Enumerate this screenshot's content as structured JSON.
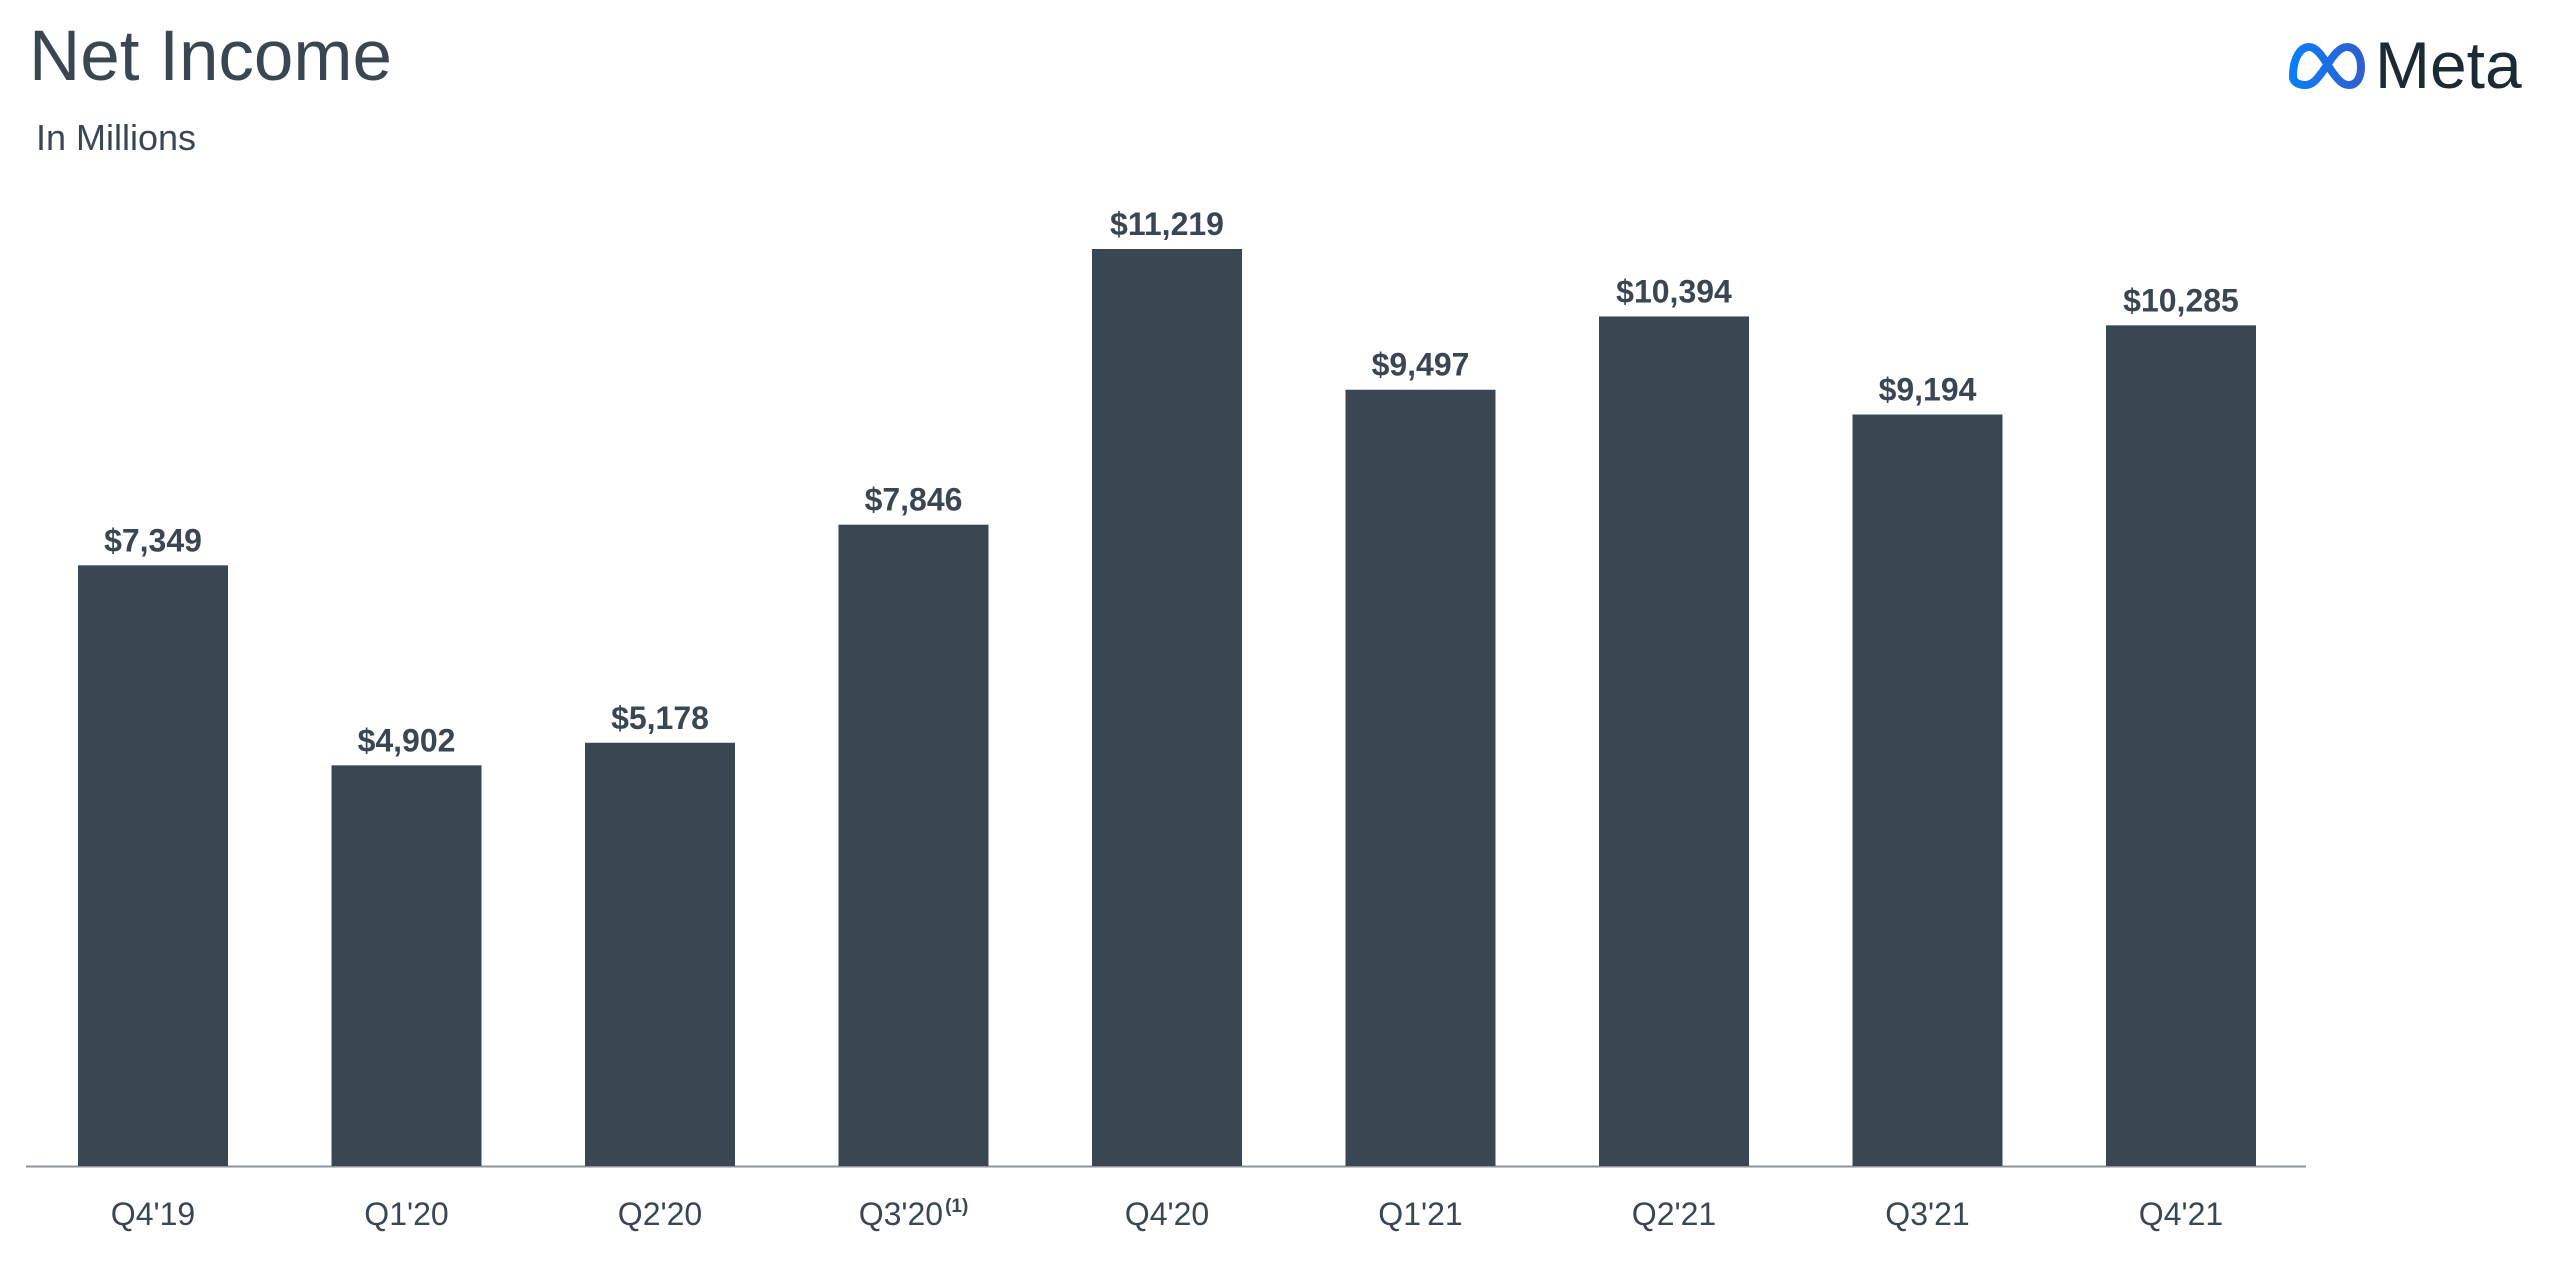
{
  "header": {
    "title": "Net Income",
    "subtitle": "In Millions"
  },
  "brand": {
    "logo_text": "Meta",
    "logo_icon": "meta-infinity-logo"
  },
  "colors": {
    "bar": "#3a4753",
    "text": "#3a4753",
    "axis": "#8c949b",
    "logo_gradient_start": "#0a7ef8",
    "logo_gradient_end": "#2f5fd0",
    "logo_text": "#1c2b33"
  },
  "chart_data": {
    "type": "bar",
    "title": "Net Income",
    "subtitle": "In Millions",
    "categories": [
      "Q4'19",
      "Q1'20",
      "Q2'20",
      "Q3'20",
      "Q4'20",
      "Q1'21",
      "Q2'21",
      "Q3'21",
      "Q4'21"
    ],
    "category_footnotes": [
      "",
      "",
      "",
      "(1)",
      "",
      "",
      "",
      "",
      ""
    ],
    "values": [
      7349,
      4902,
      5178,
      7846,
      11219,
      9497,
      10394,
      9194,
      10285
    ],
    "data_labels": [
      "$7,349",
      "$4,902",
      "$5,178",
      "$7,846",
      "$11,219",
      "$9,497",
      "$10,394",
      "$9,194",
      "$10,285"
    ],
    "xlabel": "",
    "ylabel": "",
    "ylim": [
      0,
      11219
    ],
    "grid": false,
    "legend": "none"
  }
}
